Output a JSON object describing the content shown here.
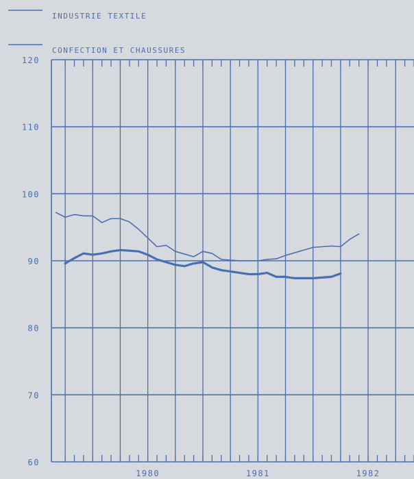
{
  "chart_data": {
    "type": "line",
    "title": "",
    "xlabel": "",
    "ylabel": "",
    "ylim": [
      60,
      120
    ],
    "yticks": [
      60,
      70,
      80,
      90,
      100,
      110,
      120
    ],
    "year_labels": [
      "1980",
      "1981",
      "1982"
    ],
    "x_unit": "months since Jan 1979",
    "xlim": [
      7.5,
      47
    ],
    "grid": true,
    "legend_position": "top-left",
    "colors": {
      "line": "#4a6fb0",
      "grid": "#4a6fb0",
      "background": "#d6d9dd"
    },
    "series": [
      {
        "name": "INDUSTRIE TEXTILE",
        "style": "thin",
        "points": [
          [
            8,
            97.2
          ],
          [
            9,
            96.5
          ],
          [
            10,
            96.9
          ],
          [
            11,
            96.7
          ],
          [
            12,
            96.7
          ],
          [
            13,
            95.7
          ],
          [
            14,
            96.3
          ],
          [
            15,
            96.3
          ],
          [
            16,
            95.8
          ],
          [
            17,
            94.7
          ],
          [
            18,
            93.4
          ],
          [
            19,
            92.1
          ],
          [
            20,
            92.3
          ],
          [
            21,
            91.4
          ],
          [
            22,
            91.0
          ],
          [
            23,
            90.6
          ],
          [
            24,
            91.4
          ],
          [
            25,
            91.1
          ],
          [
            26,
            90.2
          ],
          [
            27,
            90.1
          ],
          [
            28,
            90.0
          ],
          [
            29,
            90.0
          ],
          [
            30,
            90.0
          ],
          [
            31,
            90.2
          ],
          [
            32,
            90.3
          ],
          [
            33,
            90.8
          ],
          [
            34,
            91.2
          ],
          [
            35,
            91.6
          ],
          [
            36,
            92.0
          ],
          [
            37,
            92.1
          ],
          [
            38,
            92.2
          ],
          [
            39,
            92.1
          ],
          [
            40,
            93.2
          ],
          [
            41,
            94.0
          ]
        ]
      },
      {
        "name": "CONFECTION ET CHAUSSURES",
        "style": "thick",
        "points": [
          [
            9,
            89.6
          ],
          [
            10,
            90.4
          ],
          [
            11,
            91.1
          ],
          [
            12,
            90.9
          ],
          [
            13,
            91.1
          ],
          [
            14,
            91.4
          ],
          [
            15,
            91.6
          ],
          [
            16,
            91.5
          ],
          [
            17,
            91.4
          ],
          [
            18,
            90.9
          ],
          [
            19,
            90.2
          ],
          [
            20,
            89.8
          ],
          [
            21,
            89.4
          ],
          [
            22,
            89.2
          ],
          [
            23,
            89.6
          ],
          [
            24,
            89.8
          ],
          [
            25,
            89.0
          ],
          [
            26,
            88.6
          ],
          [
            27,
            88.4
          ],
          [
            28,
            88.2
          ],
          [
            29,
            88.0
          ],
          [
            30,
            88.0
          ],
          [
            31,
            88.2
          ],
          [
            32,
            87.6
          ],
          [
            33,
            87.6
          ],
          [
            34,
            87.4
          ],
          [
            35,
            87.4
          ],
          [
            36,
            87.4
          ],
          [
            37,
            87.5
          ],
          [
            38,
            87.6
          ],
          [
            39,
            88.1
          ]
        ]
      }
    ]
  }
}
